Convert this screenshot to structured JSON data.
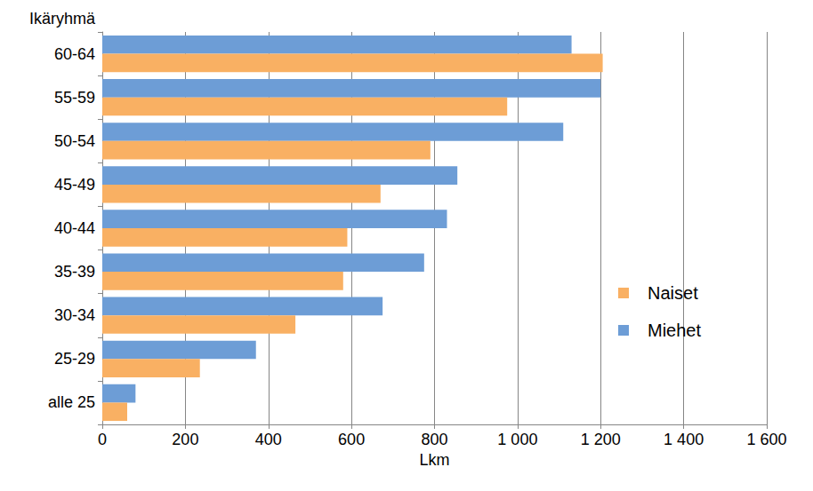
{
  "chart_data": {
    "type": "bar",
    "orientation": "horizontal",
    "x_label": "Lkm",
    "y_label": "Ikäryhmä",
    "categories": [
      "alle 25",
      "25-29",
      "30-34",
      "35-39",
      "40-44",
      "45-49",
      "50-54",
      "55-59",
      "60-64"
    ],
    "series": [
      {
        "name": "Naiset",
        "color": "#f9b063",
        "values": [
          60,
          235,
          465,
          580,
          590,
          670,
          790,
          975,
          1205
        ]
      },
      {
        "name": "Miehet",
        "color": "#6d9dd6",
        "values": [
          80,
          370,
          675,
          775,
          830,
          855,
          1110,
          1200,
          1130
        ]
      }
    ],
    "xlim": [
      0,
      1600
    ],
    "xticks": [
      0,
      200,
      400,
      600,
      800,
      {
        "value": 1000,
        "label": "1 000"
      },
      {
        "value": 1200,
        "label": "1 200"
      },
      {
        "value": 1400,
        "label": "1 400"
      },
      {
        "value": 1600,
        "label": "1 600"
      }
    ],
    "grid": true,
    "legend": "right"
  }
}
